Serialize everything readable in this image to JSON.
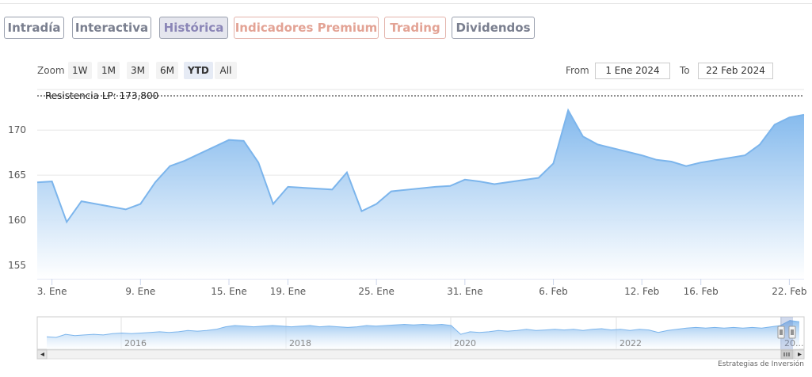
{
  "tabs": [
    {
      "label": "Intradía",
      "style": "normal"
    },
    {
      "label": "Interactiva",
      "style": "normal"
    },
    {
      "label": "Histórica",
      "style": "active"
    },
    {
      "label": "Indicadores Premium",
      "style": "premium"
    },
    {
      "label": "Trading",
      "style": "premium"
    },
    {
      "label": "Dividendos",
      "style": "normal"
    }
  ],
  "zoom": {
    "label": "Zoom",
    "buttons": [
      "1W",
      "1M",
      "3M",
      "6M",
      "YTD",
      "All"
    ],
    "selected": "YTD"
  },
  "range": {
    "from_label": "From",
    "from_value": "1 Ene 2024",
    "to_label": "To",
    "to_value": "22 Feb 2024"
  },
  "chart_data": {
    "type": "area",
    "title": "",
    "xlabel": "",
    "ylabel": "",
    "ylim": [
      153.5,
      174.5
    ],
    "yticks": [
      155,
      160,
      165,
      170
    ],
    "xticks": [
      "3. Ene",
      "9. Ene",
      "15. Ene",
      "19. Ene",
      "25. Ene",
      "31. Ene",
      "6. Feb",
      "12. Feb",
      "16. Feb",
      "22. Feb"
    ],
    "colors": {
      "line": "#7cb5ec",
      "fill_top": "#7cb5ec",
      "fill_bottom": "#ffffff"
    },
    "grid": true,
    "resistance": {
      "label": "Resistencia LP: 173,800",
      "value": 173.8
    },
    "series": [
      {
        "points": [
          [
            "2024-01-02",
            164.2
          ],
          [
            "2024-01-03",
            164.3
          ],
          [
            "2024-01-04",
            159.8
          ],
          [
            "2024-01-05",
            162.1
          ],
          [
            "2024-01-08",
            161.2
          ],
          [
            "2024-01-09",
            161.8
          ],
          [
            "2024-01-10",
            164.2
          ],
          [
            "2024-01-11",
            166.0
          ],
          [
            "2024-01-12",
            166.6
          ],
          [
            "2024-01-15",
            168.9
          ],
          [
            "2024-01-16",
            168.8
          ],
          [
            "2024-01-17",
            166.4
          ],
          [
            "2024-01-18",
            161.8
          ],
          [
            "2024-01-19",
            163.7
          ],
          [
            "2024-01-22",
            163.4
          ],
          [
            "2024-01-23",
            165.3
          ],
          [
            "2024-01-24",
            161.0
          ],
          [
            "2024-01-25",
            161.8
          ],
          [
            "2024-01-26",
            163.2
          ],
          [
            "2024-01-29",
            163.7
          ],
          [
            "2024-01-30",
            163.8
          ],
          [
            "2024-01-31",
            164.5
          ],
          [
            "2024-02-01",
            164.3
          ],
          [
            "2024-02-02",
            164.0
          ],
          [
            "2024-02-05",
            164.7
          ],
          [
            "2024-02-06",
            166.3
          ],
          [
            "2024-02-07",
            172.2
          ],
          [
            "2024-02-08",
            169.3
          ],
          [
            "2024-02-09",
            168.4
          ],
          [
            "2024-02-12",
            167.2
          ],
          [
            "2024-02-13",
            166.7
          ],
          [
            "2024-02-14",
            166.5
          ],
          [
            "2024-02-15",
            166.0
          ],
          [
            "2024-02-16",
            166.4
          ],
          [
            "2024-02-19",
            167.2
          ],
          [
            "2024-02-20",
            168.4
          ],
          [
            "2024-02-21",
            170.6
          ],
          [
            "2024-02-22",
            171.4
          ],
          [
            "2024-02-23",
            171.7
          ]
        ]
      }
    ]
  },
  "navigator": {
    "year_labels": [
      "2016",
      "2018",
      "2020",
      "2022",
      "20..."
    ],
    "values": [
      160,
      159.5,
      162,
      161,
      161.5,
      162,
      161.5,
      162.5,
      163,
      162.5,
      163,
      163.5,
      164,
      163.5,
      164,
      165,
      164.5,
      165,
      166,
      168,
      169,
      168.5,
      168,
      168.5,
      169,
      168.5,
      168,
      168.5,
      169,
      168,
      168.5,
      168,
      167.5,
      168,
      169,
      168.5,
      169,
      169.5,
      170,
      169.5,
      170,
      169.5,
      170,
      169,
      162,
      164,
      163.5,
      164,
      165,
      164.5,
      165,
      166,
      165,
      165.5,
      166,
      165.5,
      166,
      165,
      166,
      166.5,
      165.5,
      166,
      165,
      166,
      165.5,
      163.5,
      165,
      166,
      167,
      167.5,
      167,
      167.5,
      167,
      167.5,
      167,
      167.5,
      167,
      168,
      169,
      173,
      172
    ],
    "ylim": [
      150,
      176
    ]
  },
  "footer": "Estrategias de Inversión"
}
